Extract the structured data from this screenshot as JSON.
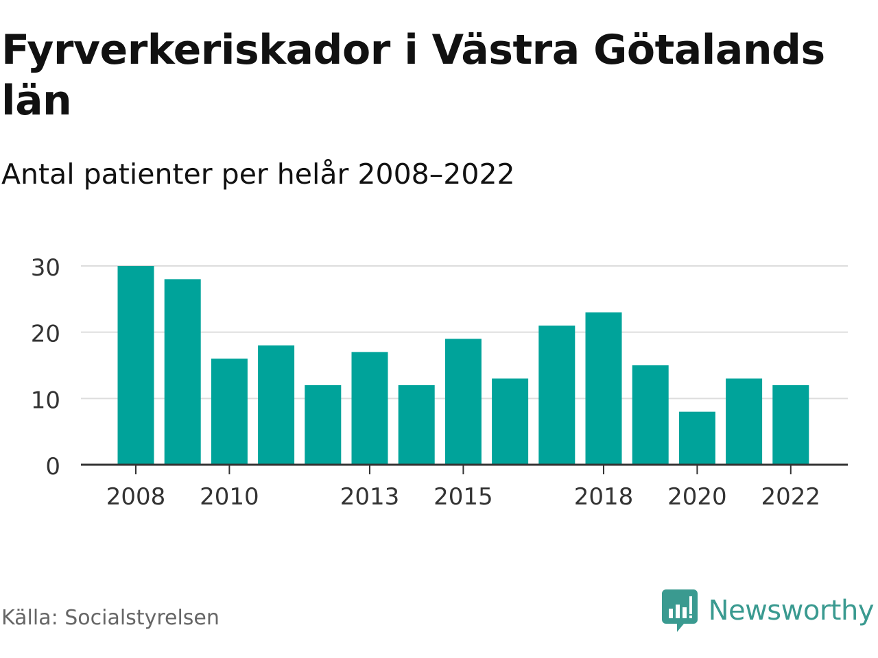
{
  "title": "Fyrverkeriskador i Västra Götalands län",
  "subtitle": "Antal patienter per helår 2008–2022",
  "source": "Källa: Socialstyrelsen",
  "brand": {
    "name": "Newsworthy",
    "icon": "newsworthy-logo-icon"
  },
  "colors": {
    "bar": "#00a39a",
    "grid": "#dddddd",
    "axis": "#333333",
    "tick_text": "#333333",
    "brand": "#3a9a90"
  },
  "chart_data": {
    "type": "bar",
    "categories": [
      "2008",
      "2009",
      "2010",
      "2011",
      "2012",
      "2013",
      "2014",
      "2015",
      "2016",
      "2017",
      "2018",
      "2019",
      "2020",
      "2021",
      "2022"
    ],
    "values": [
      30,
      28,
      16,
      18,
      12,
      17,
      12,
      19,
      13,
      21,
      23,
      15,
      8,
      13,
      12
    ],
    "x_tick_labels": [
      "2008",
      "2010",
      "2013",
      "2015",
      "2018",
      "2020",
      "2022"
    ],
    "y_ticks": [
      0,
      10,
      20,
      30
    ],
    "ylim": [
      0,
      30
    ],
    "grid": true,
    "xlabel": "",
    "ylabel": ""
  }
}
